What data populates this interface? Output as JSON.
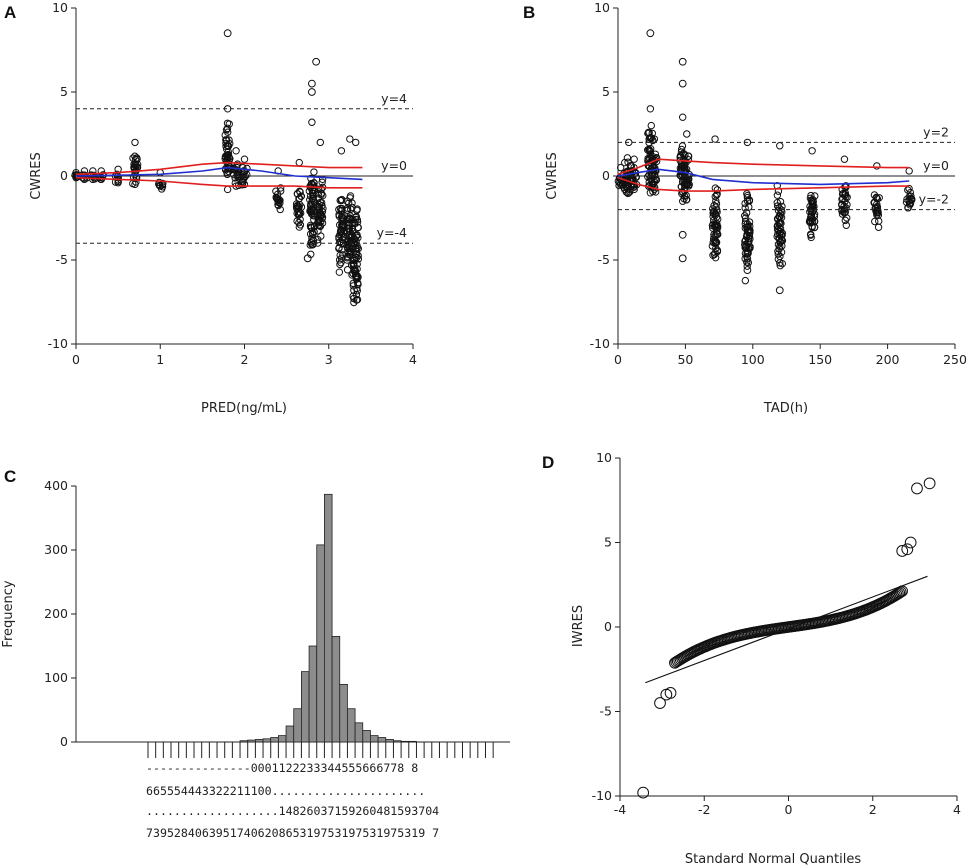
{
  "chart_data": [
    {
      "panel": "A",
      "type": "scatter",
      "xlabel": "PRED(ng/mL)",
      "ylabel": "CWRES",
      "xlim": [
        0,
        4
      ],
      "ylim": [
        -10,
        10
      ],
      "xticks": [
        "0",
        "1",
        "2",
        "3",
        "4"
      ],
      "yticks": [
        "10",
        "5",
        "0",
        "-5",
        "-10"
      ],
      "hlines": [
        {
          "y": 4,
          "label": "y=4"
        },
        {
          "y": 0,
          "label": "y=0"
        },
        {
          "y": -4,
          "label": "y=-4"
        }
      ],
      "groups": [
        {
          "x": 0.0,
          "ymin": -0.1,
          "ymax": 0.2
        },
        {
          "x": 0.1,
          "ymin": -0.2,
          "ymax": 0.3
        },
        {
          "x": 0.2,
          "ymin": -0.2,
          "ymax": 0.3
        },
        {
          "x": 0.3,
          "ymin": -0.2,
          "ymax": 0.3
        },
        {
          "x": 0.5,
          "ymin": -0.4,
          "ymax": 0.4
        },
        {
          "x": 0.7,
          "ymin": -0.5,
          "ymax": 2.0
        },
        {
          "x": 1.0,
          "ymin": -0.6,
          "ymax": 0.2
        },
        {
          "x": 1.8,
          "ymin": -0.8,
          "ymax": 4.0
        },
        {
          "x": 1.9,
          "ymin": -0.6,
          "ymax": 1.5
        },
        {
          "x": 2.0,
          "ymin": -0.5,
          "ymax": 1.0
        },
        {
          "x": 2.4,
          "ymin": -1.5,
          "ymax": 0.3
        },
        {
          "x": 2.65,
          "ymin": -2.3,
          "ymax": 0.8
        },
        {
          "x": 2.8,
          "ymin": -3.7,
          "ymax": 3.2
        },
        {
          "x": 2.9,
          "ymin": -3.0,
          "ymax": 2.0
        },
        {
          "x": 3.15,
          "ymin": -4.0,
          "ymax": 1.5
        },
        {
          "x": 3.25,
          "ymin": -4.5,
          "ymax": 2.2
        },
        {
          "x": 3.32,
          "ymin": -5.8,
          "ymax": 2.0
        }
      ],
      "outliers": [
        [
          1.8,
          8.5
        ],
        [
          2.8,
          5.5
        ],
        [
          2.8,
          5.0
        ],
        [
          2.85,
          6.8
        ],
        [
          2.75,
          -4.9
        ],
        [
          3.3,
          -6.8
        ]
      ],
      "smooth_blue": [
        [
          0,
          0
        ],
        [
          0.5,
          0.05
        ],
        [
          1.0,
          0.1
        ],
        [
          1.5,
          0.3
        ],
        [
          1.8,
          0.5
        ],
        [
          2.2,
          0.3
        ],
        [
          2.6,
          0.0
        ],
        [
          3.0,
          -0.1
        ],
        [
          3.4,
          -0.2
        ]
      ],
      "smooth_red_upper": [
        [
          0,
          0.1
        ],
        [
          0.5,
          0.2
        ],
        [
          1.0,
          0.4
        ],
        [
          1.5,
          0.7
        ],
        [
          1.8,
          0.8
        ],
        [
          2.2,
          0.7
        ],
        [
          2.6,
          0.6
        ],
        [
          3.0,
          0.5
        ],
        [
          3.4,
          0.5
        ]
      ],
      "smooth_red_lower": [
        [
          0,
          -0.1
        ],
        [
          0.5,
          -0.2
        ],
        [
          1.0,
          -0.3
        ],
        [
          1.5,
          -0.5
        ],
        [
          1.8,
          -0.6
        ],
        [
          2.2,
          -0.6
        ],
        [
          2.6,
          -0.6
        ],
        [
          3.0,
          -0.7
        ],
        [
          3.4,
          -0.7
        ]
      ]
    },
    {
      "panel": "B",
      "type": "scatter",
      "xlabel": "TAD(h)",
      "ylabel": "CWRES",
      "xlim": [
        0,
        250
      ],
      "ylim": [
        -10,
        10
      ],
      "xticks": [
        "0",
        "50",
        "100",
        "150",
        "200",
        "250"
      ],
      "yticks": [
        "10",
        "5",
        "0",
        "-5",
        "-10"
      ],
      "hlines": [
        {
          "y": 2,
          "label": "y=2"
        },
        {
          "y": 0,
          "label": "y=0"
        },
        {
          "y": -2,
          "label": "y=-2"
        }
      ],
      "groups": [
        {
          "x": 2,
          "ymin": -0.5,
          "ymax": 0.5
        },
        {
          "x": 5,
          "ymin": -0.8,
          "ymax": 0.8
        },
        {
          "x": 8,
          "ymin": -1.0,
          "ymax": 2.0
        },
        {
          "x": 12,
          "ymin": -0.8,
          "ymax": 1.0
        },
        {
          "x": 24,
          "ymin": -1.0,
          "ymax": 4.0
        },
        {
          "x": 27,
          "ymin": -0.8,
          "ymax": 2.2
        },
        {
          "x": 48,
          "ymin": -1.5,
          "ymax": 3.5
        },
        {
          "x": 51,
          "ymin": -1.4,
          "ymax": 2.5
        },
        {
          "x": 72,
          "ymin": -4.0,
          "ymax": 2.2
        },
        {
          "x": 96,
          "ymin": -4.5,
          "ymax": 2.0
        },
        {
          "x": 120,
          "ymin": -4.2,
          "ymax": 1.8
        },
        {
          "x": 144,
          "ymin": -3.0,
          "ymax": 1.5
        },
        {
          "x": 168,
          "ymin": -2.2,
          "ymax": 1.0
        },
        {
          "x": 192,
          "ymin": -2.2,
          "ymax": 0.6
        },
        {
          "x": 216,
          "ymin": -1.5,
          "ymax": 0.3
        }
      ],
      "outliers": [
        [
          24,
          8.5
        ],
        [
          48,
          6.8
        ],
        [
          48,
          5.5
        ],
        [
          48,
          -4.9
        ],
        [
          96,
          -5.6
        ],
        [
          120,
          -6.8
        ],
        [
          48,
          -3.5
        ]
      ],
      "smooth_blue": [
        [
          0,
          0
        ],
        [
          15,
          0.2
        ],
        [
          30,
          0.4
        ],
        [
          50,
          0.2
        ],
        [
          70,
          -0.2
        ],
        [
          100,
          -0.4
        ],
        [
          150,
          -0.5
        ],
        [
          200,
          -0.4
        ],
        [
          216,
          -0.3
        ]
      ],
      "smooth_red_upper": [
        [
          0,
          0.1
        ],
        [
          15,
          0.5
        ],
        [
          30,
          1.0
        ],
        [
          50,
          0.9
        ],
        [
          70,
          0.8
        ],
        [
          100,
          0.7
        ],
        [
          150,
          0.6
        ],
        [
          200,
          0.5
        ],
        [
          216,
          0.5
        ]
      ],
      "smooth_red_lower": [
        [
          0,
          -0.1
        ],
        [
          15,
          -0.5
        ],
        [
          30,
          -0.8
        ],
        [
          50,
          -0.9
        ],
        [
          70,
          -0.9
        ],
        [
          100,
          -0.8
        ],
        [
          150,
          -0.7
        ],
        [
          200,
          -0.6
        ],
        [
          216,
          -0.6
        ]
      ]
    },
    {
      "panel": "C",
      "type": "bar",
      "title": "",
      "xlabel": "",
      "ylabel": "Frequency",
      "ylim": [
        0,
        400
      ],
      "yticks": [
        "400",
        "300",
        "200",
        "100",
        "0"
      ],
      "values": [
        0,
        0,
        0,
        0,
        0,
        0,
        0,
        0,
        0,
        0,
        0,
        0,
        2,
        3,
        4,
        5,
        7,
        10,
        25,
        52,
        110,
        150,
        308,
        387,
        165,
        90,
        52,
        30,
        18,
        10,
        7,
        4,
        2,
        1,
        1,
        0,
        0,
        0,
        0,
        0,
        0,
        0,
        0,
        0,
        0,
        0
      ],
      "tick_label_rows": [
        "--------------- 0001122233344555666778 8",
        "6655544433222111 00.......................",
        "................. 148260371592604815937 04",
        "73952840639517406208653197531975319753197"
      ],
      "tick_label_lines": [
        "---------------0001122233344555666778 8",
        "665554443322211100......................",
        "...................14826037159260481593704",
        "7395284063951740620865319753197531975319 7"
      ]
    },
    {
      "panel": "D",
      "type": "scatter",
      "xlabel": "Standard Normal Quantiles",
      "ylabel": "IWRES",
      "xlim": [
        -4,
        4
      ],
      "ylim": [
        -10,
        10
      ],
      "xticks": [
        "-4",
        "-2",
        "0",
        "2",
        "4"
      ],
      "yticks": [
        "10",
        "5",
        "0",
        "-5",
        "-10"
      ],
      "ref_line": [
        [
          -3.4,
          -3.3
        ],
        [
          3.3,
          3.0
        ]
      ],
      "outliers": [
        [
          -3.45,
          -9.8
        ],
        [
          -3.05,
          -4.5
        ],
        [
          -2.9,
          -4.0
        ],
        [
          -2.8,
          -3.9
        ],
        [
          2.7,
          4.5
        ],
        [
          2.82,
          4.6
        ],
        [
          2.9,
          5.0
        ],
        [
          3.05,
          8.2
        ],
        [
          3.35,
          8.5
        ]
      ]
    }
  ]
}
